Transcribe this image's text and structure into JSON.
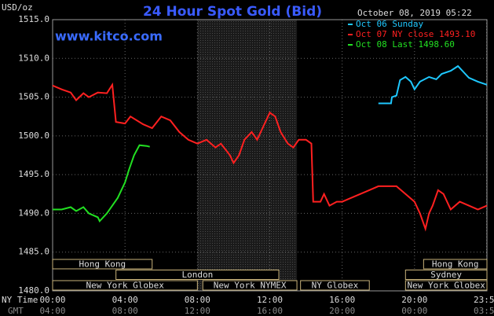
{
  "chart_data": {
    "type": "line",
    "title": "24 Hour Spot Gold (Bid)",
    "unit_label": "USD/oz",
    "site": "www.kitco.com",
    "timestamp": "October 08, 2019 05:22",
    "xlim": [
      0,
      24
    ],
    "ylim": [
      1480,
      1515
    ],
    "yticks": [
      {
        "value": 1480,
        "label": "1480.0"
      },
      {
        "value": 1485,
        "label": "1485.0"
      },
      {
        "value": 1490,
        "label": "1490.0"
      },
      {
        "value": 1495,
        "label": "1495.0"
      },
      {
        "value": 1500,
        "label": "1500.0"
      },
      {
        "value": 1505,
        "label": "1505.0"
      },
      {
        "value": 1510,
        "label": "1510.0"
      },
      {
        "value": 1515,
        "label": "1515.0"
      }
    ],
    "xticks": [
      {
        "value": 0,
        "label": "00:00"
      },
      {
        "value": 4,
        "label": "04:00"
      },
      {
        "value": 8,
        "label": "08:00"
      },
      {
        "value": 12,
        "label": "12:00"
      },
      {
        "value": 16,
        "label": "16:00"
      },
      {
        "value": 20,
        "label": "20:00"
      },
      {
        "value": 23.98,
        "label": "23:59"
      }
    ],
    "xtick_row_label": "NY Time",
    "gmt_row_label": "GMT",
    "gmt_labels": [
      "04:00",
      "08:00",
      "12:00",
      "16:00",
      "20:00",
      "00:00",
      "03:59"
    ],
    "grid": true,
    "highlight_hours": [
      8,
      13.5
    ],
    "session_rows": [
      [
        {
          "label": "Hong Kong",
          "start": 0,
          "end": 5.5
        },
        {
          "label": "Hong Kong",
          "start": 20.5,
          "end": 24
        }
      ],
      [
        {
          "label": "London",
          "start": 3.5,
          "end": 12.5
        },
        {
          "label": "Sydney",
          "start": 19.5,
          "end": 24
        }
      ],
      [
        {
          "label": "New York Globex",
          "start": 0,
          "end": 8
        },
        {
          "label": "New York NYMEX",
          "start": 8.3,
          "end": 13.5
        },
        {
          "label": "NY Globex",
          "start": 13.7,
          "end": 17.5
        },
        {
          "label": "New York Globex",
          "start": 19.5,
          "end": 24
        }
      ]
    ],
    "series": [
      {
        "name": "Oct 06 Sunday",
        "color": "#1ec8ff",
        "x": [
          18,
          18.7,
          18.75,
          19,
          19.2,
          19.5,
          19.8,
          20,
          20.3,
          20.8,
          21.2,
          21.5,
          22,
          22.4,
          22.8,
          23,
          23.5,
          24
        ],
        "values": [
          1504.2,
          1504.2,
          1505,
          1505.2,
          1507.2,
          1507.6,
          1507,
          1506,
          1507,
          1507.6,
          1507.3,
          1508,
          1508.4,
          1509,
          1508,
          1507.5,
          1507,
          1506.6
        ]
      },
      {
        "name": "Oct 07 NY close 1493.10",
        "color": "#ff2020",
        "x": [
          0,
          0.5,
          1,
          1.3,
          1.7,
          2,
          2.5,
          3,
          3.3,
          3.5,
          4,
          4.3,
          5,
          5.5,
          6,
          6.5,
          7,
          7.5,
          8,
          8.5,
          9,
          9.3,
          9.8,
          10,
          10.3,
          10.6,
          11,
          11.3,
          11.6,
          12,
          12.3,
          12.6,
          13,
          13.3,
          13.6,
          14,
          14.3,
          14.4,
          14.8,
          15,
          15.3,
          15.7,
          16,
          16.5,
          17,
          17.5,
          18,
          18.5,
          19,
          19.5,
          20,
          20.3,
          20.6,
          20.8,
          21,
          21.3,
          21.6,
          22,
          22.5,
          23,
          23.5,
          24
        ],
        "values": [
          1506.5,
          1506,
          1505.6,
          1504.6,
          1505.5,
          1505,
          1505.6,
          1505.5,
          1506.6,
          1501.8,
          1501.6,
          1502.5,
          1501.5,
          1501,
          1502.5,
          1502,
          1500.5,
          1499.5,
          1499,
          1499.5,
          1498.5,
          1499,
          1497.5,
          1496.5,
          1497.5,
          1499.5,
          1500.5,
          1499.5,
          1501,
          1503,
          1502.5,
          1500.5,
          1499,
          1498.5,
          1499.5,
          1499.5,
          1499,
          1491.5,
          1491.5,
          1492.5,
          1491,
          1491.5,
          1491.5,
          1492,
          1492.5,
          1493,
          1493.5,
          1493.5,
          1493.5,
          1492.5,
          1491.5,
          1490,
          1488,
          1490,
          1491,
          1493,
          1492.5,
          1490.5,
          1491.5,
          1491,
          1490.5,
          1491
        ]
      },
      {
        "name": "Oct 08 Last 1498.60",
        "color": "#22e022",
        "x": [
          0,
          0.5,
          1,
          1.3,
          1.7,
          2,
          2.5,
          2.6,
          3,
          3.3,
          3.6,
          4,
          4.2,
          4.5,
          4.8,
          5.2,
          5.37
        ],
        "values": [
          1490.5,
          1490.5,
          1490.8,
          1490.3,
          1490.8,
          1490,
          1489.5,
          1489,
          1490,
          1491,
          1492,
          1494,
          1495.5,
          1497.5,
          1498.8,
          1498.7,
          1498.6
        ]
      }
    ]
  }
}
